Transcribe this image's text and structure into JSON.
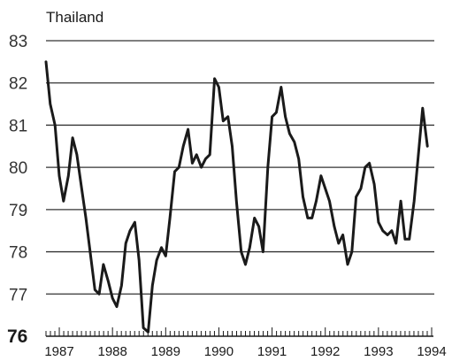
{
  "chart_data": {
    "type": "line",
    "title": "Thailand",
    "xlabel": "",
    "ylabel": "",
    "ylim": [
      76,
      83
    ],
    "yticks": [
      76,
      77,
      78,
      79,
      80,
      81,
      82,
      83
    ],
    "xlim": [
      1986.75,
      1994.0
    ],
    "xticks": [
      {
        "label": "1987",
        "value": 1987.0
      },
      {
        "label": "1988",
        "value": 1988.0
      },
      {
        "label": "1989",
        "value": 1989.0
      },
      {
        "label": "1990",
        "value": 1990.0
      },
      {
        "label": "1991",
        "value": 1991.0
      },
      {
        "label": "1992",
        "value": 1992.0
      },
      {
        "label": "1993",
        "value": 1993.0
      },
      {
        "label": "1994",
        "value": 1994.0
      }
    ],
    "grid": true,
    "series": [
      {
        "name": "",
        "color": "#1a1a1a",
        "points": [
          [
            1986.75,
            82.5
          ],
          [
            1986.83,
            81.5
          ],
          [
            1986.92,
            81.0
          ],
          [
            1987.0,
            79.8
          ],
          [
            1987.08,
            79.2
          ],
          [
            1987.17,
            79.8
          ],
          [
            1987.25,
            80.7
          ],
          [
            1987.33,
            80.3
          ],
          [
            1987.42,
            79.5
          ],
          [
            1987.5,
            78.8
          ],
          [
            1987.58,
            78.0
          ],
          [
            1987.67,
            77.1
          ],
          [
            1987.75,
            77.0
          ],
          [
            1987.83,
            77.7
          ],
          [
            1987.92,
            77.3
          ],
          [
            1988.0,
            76.9
          ],
          [
            1988.08,
            76.7
          ],
          [
            1988.17,
            77.2
          ],
          [
            1988.25,
            78.2
          ],
          [
            1988.33,
            78.5
          ],
          [
            1988.42,
            78.7
          ],
          [
            1988.5,
            77.8
          ],
          [
            1988.58,
            76.2
          ],
          [
            1988.67,
            76.1
          ],
          [
            1988.75,
            77.2
          ],
          [
            1988.83,
            77.8
          ],
          [
            1988.92,
            78.1
          ],
          [
            1989.0,
            77.9
          ],
          [
            1989.08,
            78.8
          ],
          [
            1989.17,
            79.9
          ],
          [
            1989.25,
            80.0
          ],
          [
            1989.33,
            80.5
          ],
          [
            1989.42,
            80.9
          ],
          [
            1989.5,
            80.1
          ],
          [
            1989.58,
            80.3
          ],
          [
            1989.67,
            80.0
          ],
          [
            1989.75,
            80.2
          ],
          [
            1989.83,
            80.3
          ],
          [
            1989.92,
            82.1
          ],
          [
            1990.0,
            81.9
          ],
          [
            1990.08,
            81.1
          ],
          [
            1990.17,
            81.2
          ],
          [
            1990.25,
            80.5
          ],
          [
            1990.33,
            79.2
          ],
          [
            1990.42,
            78.0
          ],
          [
            1990.5,
            77.7
          ],
          [
            1990.58,
            78.1
          ],
          [
            1990.67,
            78.8
          ],
          [
            1990.75,
            78.6
          ],
          [
            1990.83,
            78.0
          ],
          [
            1990.92,
            80.0
          ],
          [
            1991.0,
            81.2
          ],
          [
            1991.08,
            81.3
          ],
          [
            1991.17,
            81.9
          ],
          [
            1991.25,
            81.2
          ],
          [
            1991.33,
            80.8
          ],
          [
            1991.42,
            80.6
          ],
          [
            1991.5,
            80.2
          ],
          [
            1991.58,
            79.3
          ],
          [
            1991.67,
            78.8
          ],
          [
            1991.75,
            78.8
          ],
          [
            1991.83,
            79.2
          ],
          [
            1991.92,
            79.8
          ],
          [
            1992.0,
            79.5
          ],
          [
            1992.08,
            79.2
          ],
          [
            1992.17,
            78.6
          ],
          [
            1992.25,
            78.2
          ],
          [
            1992.33,
            78.4
          ],
          [
            1992.42,
            77.7
          ],
          [
            1992.5,
            78.0
          ],
          [
            1992.58,
            79.3
          ],
          [
            1992.67,
            79.5
          ],
          [
            1992.75,
            80.0
          ],
          [
            1992.83,
            80.1
          ],
          [
            1992.92,
            79.6
          ],
          [
            1993.0,
            78.7
          ],
          [
            1993.08,
            78.5
          ],
          [
            1993.17,
            78.4
          ],
          [
            1993.25,
            78.5
          ],
          [
            1993.33,
            78.2
          ],
          [
            1993.42,
            79.2
          ],
          [
            1993.5,
            78.3
          ],
          [
            1993.58,
            78.3
          ],
          [
            1993.67,
            79.2
          ],
          [
            1993.75,
            80.3
          ],
          [
            1993.83,
            81.4
          ],
          [
            1993.92,
            80.5
          ]
        ]
      }
    ]
  }
}
